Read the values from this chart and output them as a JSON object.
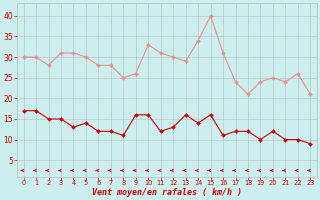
{
  "x": [
    0,
    1,
    2,
    3,
    4,
    5,
    6,
    7,
    8,
    9,
    10,
    11,
    12,
    13,
    14,
    15,
    16,
    17,
    18,
    19,
    20,
    21,
    22,
    23
  ],
  "vent_moyen": [
    17,
    17,
    15,
    15,
    13,
    14,
    12,
    12,
    11,
    16,
    16,
    12,
    13,
    16,
    14,
    16,
    11,
    12,
    12,
    10,
    12,
    10,
    10,
    9
  ],
  "rafales": [
    30,
    30,
    28,
    31,
    31,
    30,
    28,
    28,
    25,
    26,
    33,
    31,
    30,
    29,
    34,
    40,
    31,
    24,
    21,
    24,
    25,
    24,
    26,
    21
  ],
  "color_moyen": "#cc0000",
  "color_rafales": "#e89090",
  "bg_color": "#cceeee",
  "grid_color": "#bbbbbb",
  "xlabel": "Vent moyen/en rafales ( km/h )",
  "xlabel_color": "#cc0000",
  "ylabel_color": "#cc0000",
  "yticks": [
    5,
    10,
    15,
    20,
    25,
    30,
    35,
    40
  ],
  "ylim": [
    1,
    43
  ],
  "xlim": [
    -0.5,
    23.5
  ]
}
